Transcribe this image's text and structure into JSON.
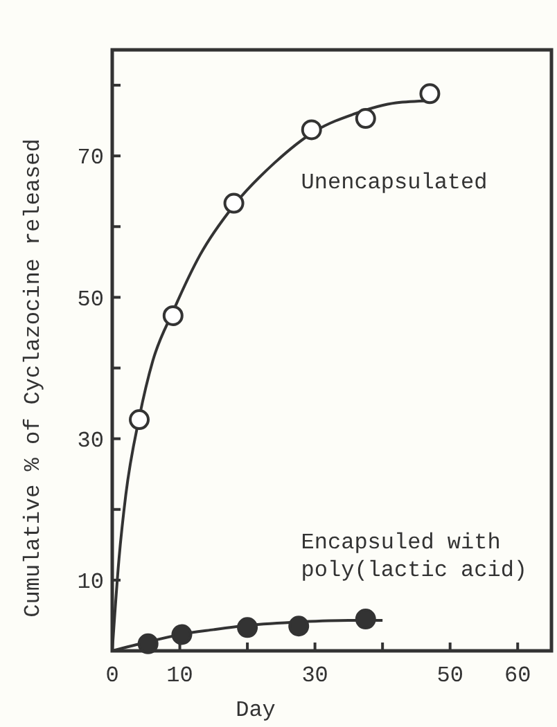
{
  "chart_data": {
    "type": "scatter",
    "xlabel": "Day",
    "ylabel": "Cumulative % of Cyclazocine released",
    "xlim": [
      0,
      65
    ],
    "xticks": [
      0,
      10,
      {
        "value": 20,
        "label": null
      },
      30,
      {
        "value": 40,
        "label": null
      },
      50,
      60
    ],
    "ylim": [
      0,
      85
    ],
    "yticks": [
      {
        "value": 0,
        "label": null
      },
      10,
      {
        "value": 20,
        "label": null
      },
      30,
      {
        "value": 40,
        "label": null
      },
      50,
      {
        "value": 60,
        "label": null
      },
      70,
      {
        "value": 80,
        "label": null
      }
    ],
    "grid": false,
    "marker": "circle",
    "series": [
      {
        "name": "Unencapsulated",
        "color": "#ffffff",
        "x": [
          4,
          9,
          18,
          29.5,
          37.5,
          47
        ],
        "values": [
          32.7,
          47.4,
          63.3,
          73.7,
          75.3,
          78.8
        ]
      },
      {
        "name": "Encapsuled with poly(lactic acid)",
        "color": "#333333",
        "x": [
          5.3,
          10.3,
          20,
          27.6,
          37.5
        ],
        "values": [
          1,
          2.3,
          3.3,
          3.5,
          4.5
        ]
      },
      {
        "type": "line",
        "marker": "none",
        "color": "#333333",
        "line_style": "solid",
        "x": [
          0,
          1,
          2,
          4,
          6,
          9,
          13,
          18,
          24,
          30,
          36,
          42,
          47
        ],
        "values": [
          0,
          13,
          22,
          33,
          41,
          48,
          56,
          63,
          69,
          73.5,
          76,
          77.5,
          77.8
        ]
      },
      {
        "type": "line",
        "marker": "none",
        "color": "#333333",
        "line_style": "solid",
        "x": [
          0,
          5,
          10,
          15,
          20,
          28,
          35,
          40
        ],
        "values": [
          0,
          1.2,
          2.3,
          3,
          3.6,
          4.1,
          4.3,
          4.3
        ]
      }
    ]
  }
}
